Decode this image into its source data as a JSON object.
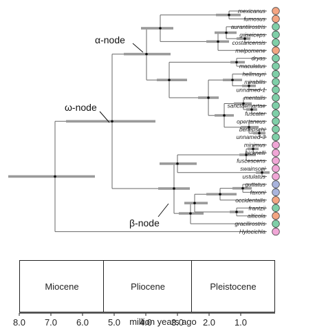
{
  "node_labels": {
    "alpha": "α-node",
    "omega": "ω-node",
    "beta": "β-node"
  },
  "tips": [
    {
      "name": "mexicanus",
      "color": "#f4a582"
    },
    {
      "name": "fumosus",
      "color": "#f4a582"
    },
    {
      "name": "aurantiirostris",
      "color": "#7fcfa8"
    },
    {
      "name": "griseiceps",
      "color": "#7fcfa8"
    },
    {
      "name": "costaricensis",
      "color": "#7fcfa8"
    },
    {
      "name": "melpomene",
      "color": "#f4a582"
    },
    {
      "name": "dryas",
      "color": "#7fcfa8"
    },
    {
      "name": "maculatus",
      "color": "#7fcfa8"
    },
    {
      "name": "hellmayri",
      "color": "#7fcfa8"
    },
    {
      "name": "mirabilis",
      "color": "#7fcfa8"
    },
    {
      "name": "unnamed-1",
      "color": "#7fcfa8"
    },
    {
      "name": "mentalis",
      "color": "#7fcfa8"
    },
    {
      "name": "sanctaemartae",
      "color": "#7fcfa8"
    },
    {
      "name": "fuscater",
      "color": "#7fcfa8"
    },
    {
      "name": "opertaneus",
      "color": "#7fcfa8"
    },
    {
      "name": "berlepschi",
      "color": "#7fcfa8"
    },
    {
      "name": "unnamed-3",
      "color": "#7fcfa8"
    },
    {
      "name": "minimus",
      "color": "#f0a6d6"
    },
    {
      "name": "bicknelli",
      "color": "#f0a6d6"
    },
    {
      "name": "fuscescens",
      "color": "#f0a6d6"
    },
    {
      "name": "swainsoni",
      "color": "#f0a6d6"
    },
    {
      "name": "ustulatus",
      "color": "#f0a6d6"
    },
    {
      "name": "guttatus",
      "color": "#a9b4dd"
    },
    {
      "name": "faxoni",
      "color": "#a9b4dd"
    },
    {
      "name": "occidentalis",
      "color": "#f4a582"
    },
    {
      "name": "frantzii",
      "color": "#7fcfa8"
    },
    {
      "name": "alticola",
      "color": "#f4a582"
    },
    {
      "name": "gracilirostris",
      "color": "#7fcfa8"
    },
    {
      "name": "Hylocichla",
      "color": "#f0a6d6"
    }
  ],
  "epochs": [
    {
      "name": "Miocene",
      "start": 8.0,
      "end": 5.33
    },
    {
      "name": "Pliocene",
      "start": 5.33,
      "end": 2.58
    },
    {
      "name": "Pleistocene",
      "start": 2.58,
      "end": 0.0
    }
  ],
  "axis": {
    "ticks": [
      "8.0",
      "7.0",
      "6.0",
      "5.0",
      "4.0",
      "3.0",
      "2.0",
      "1.0"
    ],
    "title": "million years ago",
    "range": [
      8.0,
      0.0
    ]
  }
}
